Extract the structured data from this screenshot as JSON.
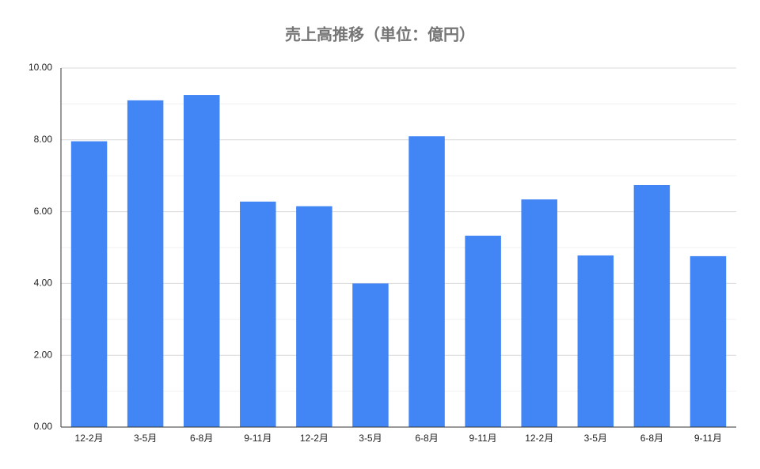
{
  "chart_data": {
    "type": "bar",
    "title": "売上高推移（単位：億円）",
    "categories": [
      "12-2月",
      "3-5月",
      "6-8月",
      "9-11月",
      "12-2月",
      "3-5月",
      "6-8月",
      "9-11月",
      "12-2月",
      "3-5月",
      "6-8月",
      "9-11月"
    ],
    "values": [
      7.96,
      9.1,
      9.25,
      6.28,
      6.15,
      4.0,
      8.1,
      5.33,
      6.34,
      4.78,
      6.74,
      4.76
    ],
    "color": "#4285f4",
    "ylim": [
      0,
      10
    ],
    "yticks": [
      {
        "value": 0,
        "label": "0.00"
      },
      {
        "value": 2,
        "label": "2.00"
      },
      {
        "value": 4,
        "label": "4.00"
      },
      {
        "value": 6,
        "label": "6.00"
      },
      {
        "value": 8,
        "label": "8.00"
      },
      {
        "value": 10,
        "label": "10.00"
      }
    ],
    "minor_yticks": [
      1,
      3,
      5,
      7,
      9
    ],
    "grid": true
  }
}
